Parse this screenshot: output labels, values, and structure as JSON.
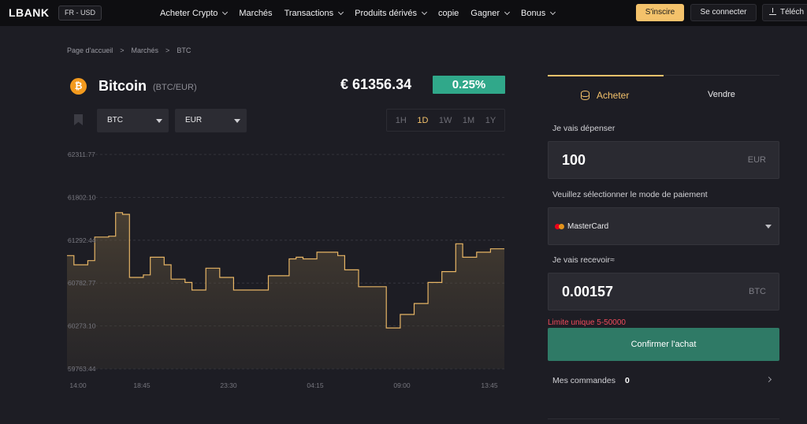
{
  "header": {
    "logo": "LBANK",
    "locale": "FR - USD",
    "nav": [
      {
        "label": "Acheter Crypto",
        "dropdown": true
      },
      {
        "label": "Marchés",
        "dropdown": false
      },
      {
        "label": "Transactions",
        "dropdown": true
      },
      {
        "label": "Produits dérivés",
        "dropdown": true
      },
      {
        "label": "copie",
        "dropdown": false
      },
      {
        "label": "Gagner",
        "dropdown": true
      },
      {
        "label": "Bonus",
        "dropdown": true
      }
    ],
    "signup": "S'inscire",
    "login": "Se connecter",
    "download": "Téléch"
  },
  "breadcrumb": [
    "Page d'accueil",
    ">",
    "Marchés",
    ">",
    "BTC"
  ],
  "coin": {
    "icon": "bitcoin-icon",
    "symbol_glyph": "₿",
    "name": "Bitcoin",
    "pair": "(BTC/EUR)",
    "price": "€ 61356.34",
    "change": "0.25%",
    "change_color": "#30a88a"
  },
  "selectors": {
    "crypto": "BTC",
    "fiat": "EUR"
  },
  "timeframes": [
    {
      "label": "1H",
      "active": false
    },
    {
      "label": "1D",
      "active": true
    },
    {
      "label": "1W",
      "active": false
    },
    {
      "label": "1M",
      "active": false
    },
    {
      "label": "1Y",
      "active": false
    }
  ],
  "chart_data": {
    "type": "area",
    "title": "",
    "xlabel": "",
    "ylabel": "",
    "x_ticks": [
      "14:00",
      "18:45",
      "23:30",
      "04:15",
      "09:00",
      "13:45"
    ],
    "y_ticks": [
      "62311.77",
      "61802.10",
      "61292.44",
      "60782.77",
      "60273.10",
      "59763.44"
    ],
    "ylim": [
      59763.44,
      62311.77
    ],
    "grid": true,
    "line_color": "#e7b565",
    "series": [
      {
        "name": "",
        "values": [
          61110,
          61000,
          61000,
          61050,
          61330,
          61330,
          61340,
          61620,
          61600,
          60850,
          60850,
          60880,
          61090,
          61090,
          61000,
          60830,
          60830,
          60790,
          60700,
          60700,
          60960,
          60960,
          60850,
          60850,
          60700,
          60700,
          60700,
          60700,
          60700,
          60870,
          60870,
          60870,
          61070,
          61090,
          61070,
          61070,
          61150,
          61150,
          61150,
          61110,
          60940,
          60940,
          60740,
          60740,
          60740,
          60740,
          60250,
          60250,
          60410,
          60410,
          60540,
          60540,
          60790,
          60790,
          60920,
          60920,
          61250,
          61090,
          61090,
          61150,
          61150,
          61190,
          61190
        ]
      }
    ]
  },
  "trade_panel": {
    "tab_buy": "Acheter",
    "tab_sell": "Vendre",
    "spend_label": "Je vais dépenser",
    "spend_value": "100",
    "spend_unit": "EUR",
    "payment_label": "Veuillez sélectionner le mode de paiement",
    "payment_method": "MasterCard",
    "receive_label": "Je vais recevoir≈",
    "receive_value": "0.00157",
    "receive_unit": "BTC",
    "limit": "Limite unique 5-50000",
    "confirm": "Confirmer l'achat",
    "orders_label": "Mes commandes",
    "orders_count": "0"
  }
}
